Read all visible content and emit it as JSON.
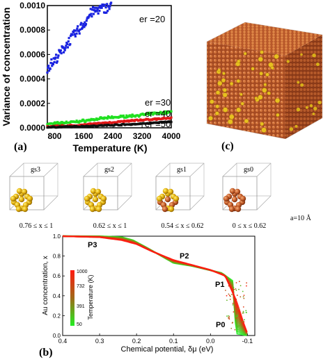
{
  "panel_a": {
    "label": "(a)",
    "ylabel": "Variance of concentration",
    "xlabel": "Temperature (K)",
    "xticks": [
      "800",
      "1600",
      "2400",
      "3200",
      "4000"
    ],
    "yticks": [
      "0.0000",
      "0.0002",
      "0.0004",
      "0.0006",
      "0.0008",
      "0.0010"
    ],
    "series_labels": [
      "er =20",
      "er =30",
      "er =40",
      "er =50"
    ],
    "colors": {
      "er20": "#1a23e0",
      "er30": "#21e021",
      "er40": "#e01818",
      "er50": "#111111"
    }
  },
  "panel_c": {
    "label": "(c)"
  },
  "clusters": {
    "names": [
      "gs3",
      "gs2",
      "gs1",
      "gs0"
    ],
    "ranges": [
      "0.76 ≤ x ≤ 1",
      "0.62 ≤ x ≤ 1",
      "0.54 ≤ x ≤ 0.62",
      "0 ≤ x ≤ 0.62"
    ],
    "scale": "a=10 Å"
  },
  "panel_b": {
    "label": "(b)",
    "ylabel": "Au concentration, x",
    "xlabel": "Chemical potential, δμ (eV)",
    "xticks": [
      "0.4",
      "0.3",
      "0.2",
      "0.1",
      "0.0",
      "-0.1"
    ],
    "yticks": [
      "0.0",
      "0.2",
      "0.4",
      "0.6",
      "0.8",
      "1.0"
    ],
    "phase_labels": [
      "P3",
      "P2",
      "P1",
      "P0"
    ],
    "colorbar_ticks": [
      "1000",
      "732",
      "391",
      "50"
    ],
    "colorbar_label": "Temperature (K)"
  },
  "chart_data": [
    {
      "type": "scatter",
      "xlabel": "Temperature (K)",
      "ylabel": "Variance of concentration",
      "xlim": [
        600,
        4000
      ],
      "ylim": [
        0,
        0.001
      ],
      "series": [
        {
          "name": "er =20",
          "x": [
            600,
            800,
            1000,
            1200,
            1400,
            1600,
            1800,
            2000,
            2200,
            2350
          ],
          "y": [
            0.00049,
            0.00055,
            0.00063,
            0.00071,
            0.00078,
            0.00085,
            0.00094,
            0.00097,
            0.00098,
            0.00099
          ]
        },
        {
          "name": "er =30",
          "x": [
            600,
            1400,
            2200,
            3000,
            4000
          ],
          "y": [
            3e-05,
            5e-05,
            8e-05,
            0.0001,
            0.00013
          ]
        },
        {
          "name": "er =40",
          "x": [
            600,
            1400,
            2200,
            3000,
            4000
          ],
          "y": [
            1e-05,
            2e-05,
            4e-05,
            6e-05,
            8e-05
          ]
        },
        {
          "name": "er =50",
          "x": [
            600,
            1400,
            2200,
            3000,
            4000
          ],
          "y": [
            5e-06,
            1e-05,
            2e-05,
            3e-05,
            5e-05
          ]
        }
      ]
    },
    {
      "type": "scatter",
      "xlabel": "Chemical potential, δμ (eV)",
      "ylabel": "Au concentration, x",
      "xlim": [
        0.4,
        -0.12
      ],
      "ylim": [
        0,
        1
      ],
      "series": [
        {
          "name": "50",
          "x": [
            0.4,
            0.3,
            0.24,
            0.21,
            0.17,
            0.1,
            0.05,
            -0.03,
            -0.06,
            -0.07,
            -0.085,
            -0.1
          ],
          "y": [
            1.0,
            1.0,
            0.99,
            0.96,
            0.88,
            0.73,
            0.7,
            0.63,
            0.55,
            0.02,
            0.01,
            0.0
          ]
        },
        {
          "name": "1000",
          "x": [
            0.4,
            0.3,
            0.24,
            0.2,
            0.16,
            0.1,
            0.05,
            0.0,
            -0.04,
            -0.07,
            -0.09,
            -0.1
          ],
          "y": [
            1.0,
            0.99,
            0.96,
            0.92,
            0.85,
            0.76,
            0.71,
            0.66,
            0.6,
            0.35,
            0.12,
            0.02
          ]
        }
      ]
    }
  ]
}
